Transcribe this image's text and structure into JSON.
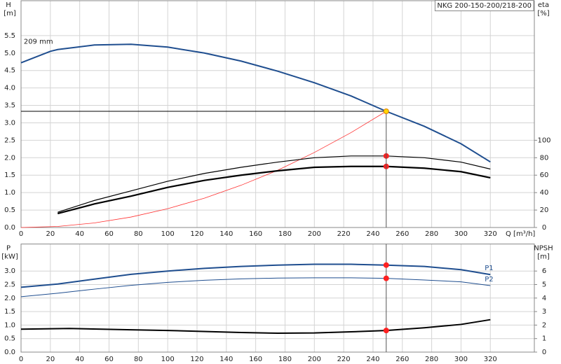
{
  "chart_data": [
    {
      "type": "line",
      "title": "NKG 200-150-200/218-200",
      "xlabel": "Q [m³/h]",
      "ylabel": [
        "H",
        "[m]"
      ],
      "y2label": [
        "eta",
        "[%]"
      ],
      "xlim": [
        0,
        350
      ],
      "xticks": [
        0,
        20,
        40,
        60,
        80,
        100,
        120,
        140,
        160,
        180,
        200,
        220,
        240,
        260,
        280,
        300,
        320
      ],
      "ylim": [
        0,
        6.5
      ],
      "yticks": [
        {
          "value": 0,
          "label": "0.0"
        },
        0.5,
        {
          "value": 1,
          "label": "1.0"
        },
        1.5,
        {
          "value": 2,
          "label": "2.0"
        },
        2.5,
        {
          "value": 3,
          "label": "3.0"
        },
        3.5,
        {
          "value": 4,
          "label": "4.0"
        },
        4.5,
        {
          "value": 5,
          "label": "5.0"
        },
        5.5
      ],
      "y2lim": [
        0,
        260
      ],
      "y2ticks": [
        0,
        20,
        40,
        60,
        80,
        100
      ],
      "grid": true,
      "series": [
        {
          "name": "209 mm",
          "name_at": "start",
          "color": "#1f4e8f",
          "line_width": 2,
          "x": [
            0,
            20,
            25,
            50,
            75,
            100,
            125,
            150,
            175,
            200,
            225,
            249,
            275,
            300,
            320
          ],
          "values": [
            4.72,
            5.05,
            5.1,
            5.23,
            5.25,
            5.17,
            5.0,
            4.77,
            4.48,
            4.15,
            3.77,
            3.33,
            2.9,
            2.4,
            1.88
          ]
        },
        {
          "color": "#ff3030",
          "line_width": 0.8,
          "x": [
            0,
            25,
            50,
            75,
            100,
            125,
            150,
            175,
            200,
            225,
            249
          ],
          "values": [
            0,
            0.03,
            0.13,
            0.3,
            0.54,
            0.84,
            1.21,
            1.64,
            2.15,
            2.72,
            3.33
          ]
        },
        {
          "color": "#000000",
          "line_width": 1.2,
          "axis": "y2",
          "x": [
            25,
            50,
            75,
            100,
            125,
            150,
            175,
            200,
            225,
            249,
            275,
            300,
            320
          ],
          "values": [
            17.5,
            31,
            42,
            53,
            62,
            69,
            75,
            80,
            82,
            82,
            80,
            75,
            67
          ]
        },
        {
          "color": "#000000",
          "line_width": 2.2,
          "axis": "y2",
          "x": [
            25,
            50,
            75,
            100,
            125,
            150,
            175,
            200,
            225,
            249,
            275,
            300,
            320
          ],
          "values": [
            16,
            27,
            36,
            46,
            54,
            60,
            65,
            69,
            70,
            70,
            68,
            64,
            57
          ]
        },
        {
          "type": "marker",
          "color": "#ff2020",
          "axis": "y2",
          "x": [
            249,
            249
          ],
          "values": [
            82,
            70
          ]
        },
        {
          "type": "marker",
          "guide": "cross",
          "color": "#ffd700",
          "x": [
            249
          ],
          "values": [
            3.33
          ]
        }
      ]
    },
    {
      "type": "line",
      "ylabel": [
        "P",
        "[kW]"
      ],
      "y2label": [
        "NPSH",
        "[m]"
      ],
      "xlim": [
        0,
        350
      ],
      "xticks": [
        0,
        20,
        40,
        60,
        80,
        100,
        120,
        140,
        160,
        180,
        200,
        220,
        240,
        260,
        280,
        300,
        320
      ],
      "ylim": [
        0,
        4
      ],
      "yticks": [
        {
          "value": 0,
          "label": "0.0"
        },
        0.5,
        {
          "value": 1,
          "label": "1.0"
        },
        1.5,
        {
          "value": 2,
          "label": "2.0"
        },
        2.5,
        {
          "value": 3,
          "label": "3.0"
        }
      ],
      "y2lim": [
        0,
        8
      ],
      "y2ticks": [
        0,
        1,
        2,
        3,
        4,
        5,
        6
      ],
      "grid": true,
      "series": [
        {
          "name": "P1",
          "name_at": "end",
          "color": "#1f4e8f",
          "line_width": 2,
          "x": [
            0,
            25,
            50,
            75,
            100,
            125,
            150,
            175,
            200,
            225,
            249,
            275,
            300,
            320
          ],
          "values": [
            2.4,
            2.52,
            2.7,
            2.88,
            3.0,
            3.1,
            3.17,
            3.22,
            3.25,
            3.25,
            3.22,
            3.17,
            3.05,
            2.87
          ]
        },
        {
          "name": "P2",
          "name_at": "end",
          "color": "#1f4e8f",
          "line_width": 1,
          "x": [
            0,
            25,
            50,
            75,
            100,
            125,
            150,
            175,
            200,
            225,
            249,
            275,
            300,
            320
          ],
          "values": [
            2.05,
            2.18,
            2.33,
            2.47,
            2.58,
            2.66,
            2.71,
            2.74,
            2.75,
            2.75,
            2.73,
            2.67,
            2.6,
            2.46
          ]
        },
        {
          "color": "#000000",
          "line_width": 2,
          "axis": "y2",
          "x": [
            0,
            33,
            75,
            100,
            150,
            175,
            200,
            225,
            249,
            275,
            300,
            320
          ],
          "values": [
            1.7,
            1.75,
            1.65,
            1.6,
            1.45,
            1.4,
            1.42,
            1.5,
            1.6,
            1.8,
            2.05,
            2.4
          ]
        },
        {
          "type": "marker",
          "guide": "vertical",
          "color": "#ff2020",
          "x": [
            249,
            249
          ],
          "values": [
            3.22,
            2.73
          ]
        },
        {
          "type": "marker",
          "color": "#ff2020",
          "axis": "y2",
          "x": [
            249
          ],
          "values": [
            1.6
          ]
        }
      ]
    }
  ]
}
